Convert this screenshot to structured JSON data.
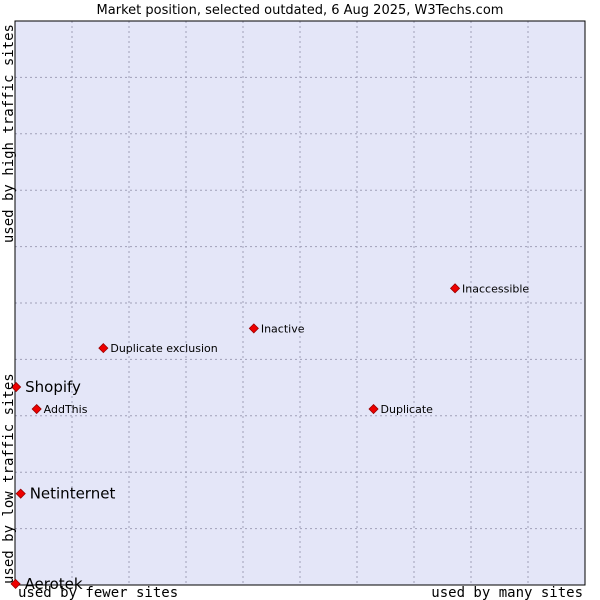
{
  "chart_data": {
    "type": "scatter",
    "title": "Market position, selected outdated, 6 Aug 2025, W3Techs.com",
    "xlabel_left": "used by fewer sites",
    "xlabel_right": "used by many sites",
    "ylabel_bottom": "used by low traffic sites",
    "ylabel_top": "used by high traffic sites",
    "xlim": [
      0,
      100
    ],
    "ylim": [
      0,
      100
    ],
    "grid": true,
    "colors": {
      "plot_bg": "#e4e6f8",
      "grid": "#a0a0b8",
      "marker": "#ee0000",
      "frame": "#000000"
    },
    "points": [
      {
        "label": "Inaccessible",
        "x": 77.2,
        "y": 52.6,
        "emphasis": false
      },
      {
        "label": "Inactive",
        "x": 41.9,
        "y": 45.5,
        "emphasis": false
      },
      {
        "label": "Duplicate exclusion",
        "x": 15.5,
        "y": 42.0,
        "emphasis": false
      },
      {
        "label": "Shopify",
        "x": 0.2,
        "y": 35.1,
        "emphasis": true
      },
      {
        "label": "AddThis",
        "x": 3.8,
        "y": 31.2,
        "emphasis": false
      },
      {
        "label": "Duplicate",
        "x": 62.9,
        "y": 31.2,
        "emphasis": false
      },
      {
        "label": "Netinternet",
        "x": 1.0,
        "y": 16.2,
        "emphasis": true
      },
      {
        "label": "Aerotek",
        "x": 0.1,
        "y": 0.2,
        "emphasis": true
      }
    ]
  }
}
